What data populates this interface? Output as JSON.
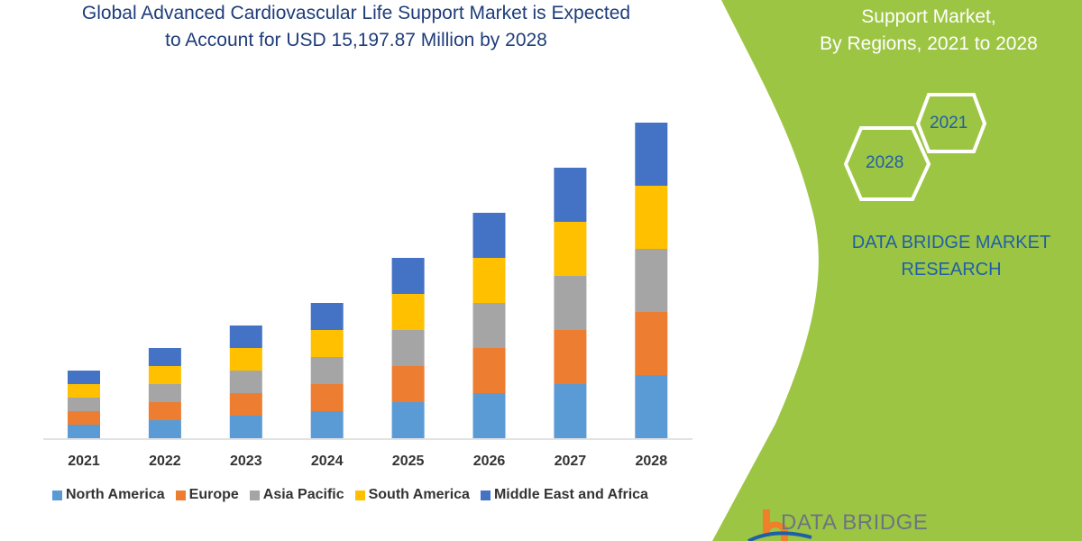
{
  "header": {
    "title_line1": "Global Advanced Cardiovascular Life Support Market is Expected",
    "title_line2": "to Account for USD 15,197.87 Million by 2028"
  },
  "side_panel": {
    "title_line1": "Support Market,",
    "title_line2": "By Regions, 2021 to 2028",
    "hex_a": "2021",
    "hex_b": "2028",
    "brand_line1": "DATA BRIDGE MARKET",
    "brand_line2": "RESEARCH",
    "logo_text": "DATA BRIDGE",
    "panel_color": "#9dc544"
  },
  "chart_data": {
    "type": "bar",
    "stacked": true,
    "title": "",
    "xlabel": "",
    "ylabel": "",
    "y_axis_shown": false,
    "grid": false,
    "legend_position": "bottom",
    "categories": [
      "2021",
      "2022",
      "2023",
      "2024",
      "2025",
      "2026",
      "2027",
      "2028"
    ],
    "series": [
      {
        "name": "North America",
        "color": "#5b9bd5",
        "values": [
          15,
          20,
          25,
          30,
          40,
          50,
          60,
          70
        ]
      },
      {
        "name": "Europe",
        "color": "#ed7d31",
        "values": [
          15,
          20,
          25,
          30,
          40,
          50,
          60,
          70
        ]
      },
      {
        "name": "Asia Pacific",
        "color": "#a5a5a5",
        "values": [
          15,
          20,
          25,
          30,
          40,
          50,
          60,
          70
        ]
      },
      {
        "name": "South America",
        "color": "#ffc000",
        "values": [
          15,
          20,
          25,
          30,
          40,
          50,
          60,
          70
        ]
      },
      {
        "name": "Middle East and Africa",
        "color": "#4472c4",
        "values": [
          15,
          20,
          25,
          30,
          40,
          50,
          60,
          70
        ]
      }
    ]
  }
}
